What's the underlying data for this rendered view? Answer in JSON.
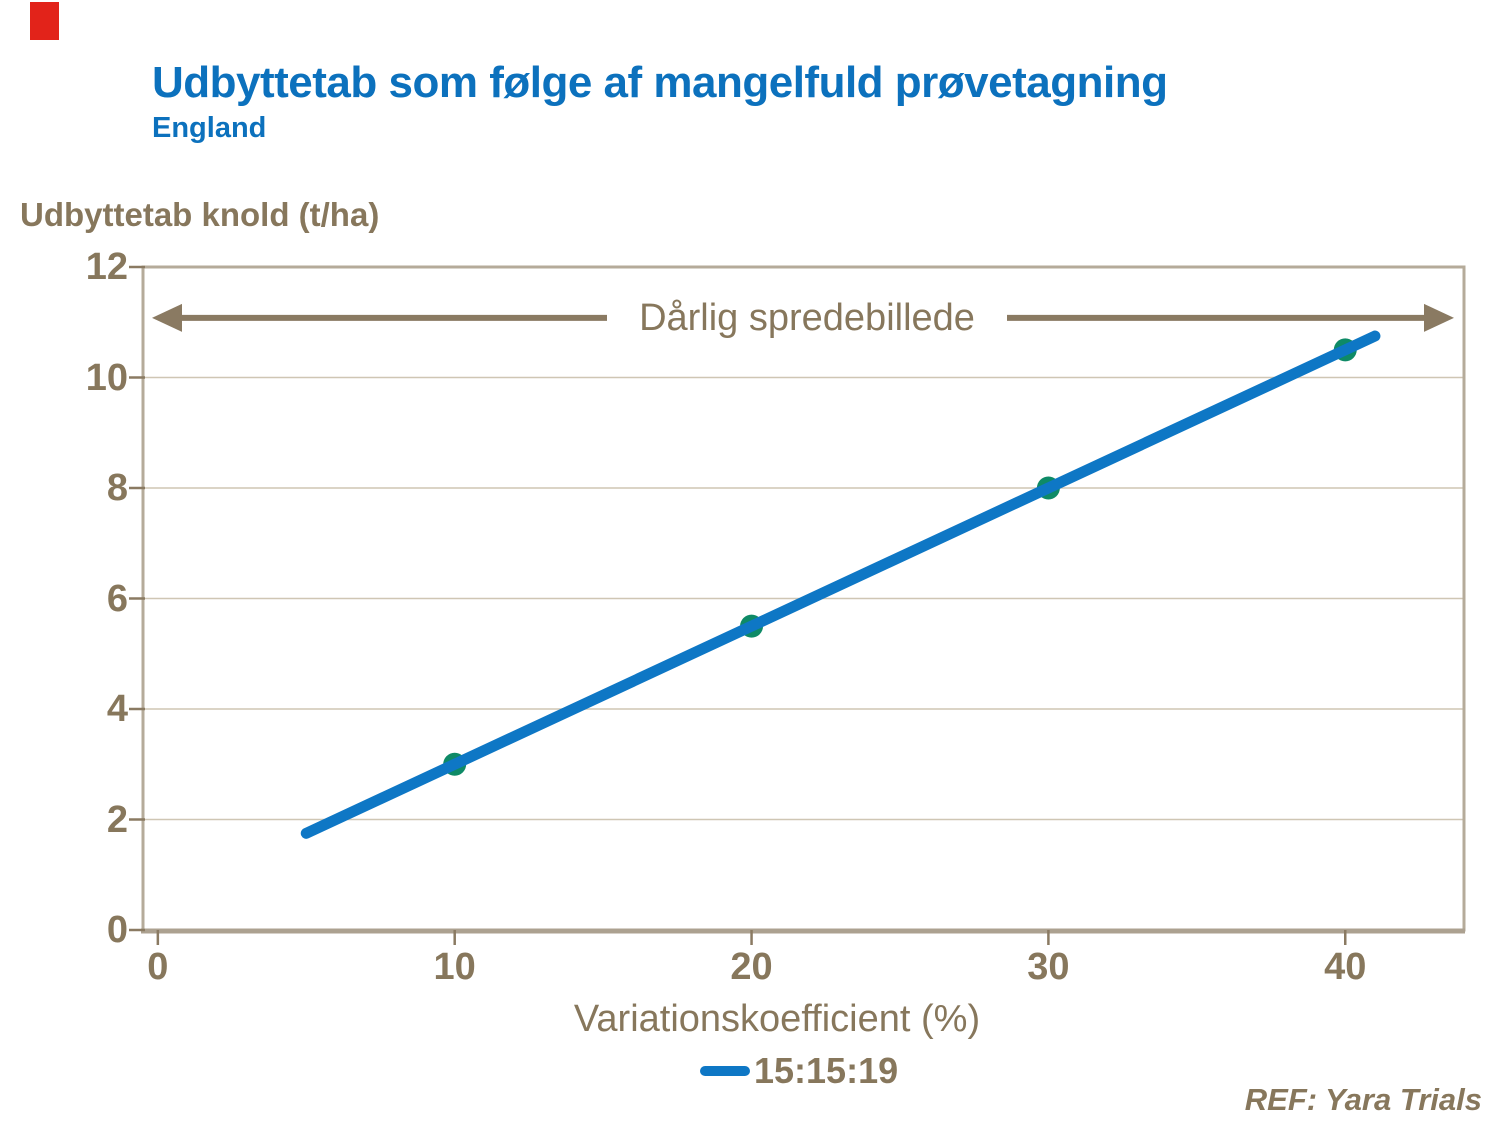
{
  "page": {
    "title": "Udbyttetab som følge af mangelfuld prøvetagning",
    "subtitle": "England",
    "ref_note": "REF: Yara Trials"
  },
  "colors": {
    "accent_blue": "#0C71BD",
    "line_blue": "#0E77C5",
    "marker_green": "#0E8A66",
    "text_brown": "#87775C",
    "arrow_brown": "#8A7A62",
    "grid_tan": "#CFC6B4",
    "border_tan": "#B5AB9A",
    "axis_bottom_tan": "#ACA190",
    "red_tab": "#E2231A"
  },
  "chart_data": {
    "type": "scatter",
    "title": "Udbyttetab som følge af mangelfuld prøvetagning (England)",
    "xlabel": "Variationskoefficient (%)",
    "ylabel": "Udbyttetab knold (t/ha)",
    "xlim": [
      -0.5,
      44
    ],
    "ylim": [
      0,
      12
    ],
    "x_ticks": [
      0,
      10,
      20,
      30,
      40
    ],
    "y_ticks": [
      0,
      2,
      4,
      6,
      8,
      10,
      12
    ],
    "grid": "horizontal",
    "series": [
      {
        "name": "15:15:19",
        "x": [
          10,
          20,
          30,
          40
        ],
        "y": [
          3,
          5.5,
          8,
          10.5
        ]
      }
    ],
    "trendline": {
      "x": [
        5,
        41
      ],
      "y": [
        1.75,
        10.75
      ]
    },
    "annotation": {
      "text": "Dårlig spredebillede",
      "y": 11.08
    },
    "legend": {
      "label": "15:15:19",
      "position": "bottom"
    }
  }
}
